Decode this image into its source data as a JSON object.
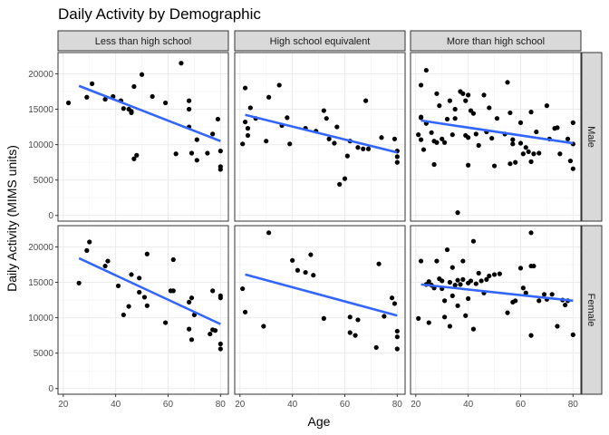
{
  "chart_data": {
    "type": "scatter",
    "title": "Daily Activity by Demographic",
    "xlabel": "Age",
    "ylabel": "Daily Activity (MIMS units)",
    "xlim": [
      18,
      83
    ],
    "ylim": [
      -800,
      23000
    ],
    "x_ticks": [
      20,
      40,
      60,
      80
    ],
    "y_ticks": [
      0,
      5000,
      10000,
      15000,
      20000
    ],
    "grid": true,
    "col_facets": [
      "Less than high school",
      "High school equivalent",
      "More than high school"
    ],
    "row_facets": [
      "Male",
      "Female"
    ],
    "colors": {
      "point": "#000000",
      "trend": "#3366ff",
      "strip": "#d9d9d9",
      "panel_border": "#333333",
      "grid": "#ebebeb"
    },
    "panels": [
      {
        "row": "Male",
        "col": "Less than high school",
        "trend": {
          "x": [
            26,
            80
          ],
          "y": [
            18300,
            10500
          ]
        },
        "points": [
          [
            22,
            15900
          ],
          [
            29,
            16700
          ],
          [
            31,
            18600
          ],
          [
            36,
            16400
          ],
          [
            39,
            16800
          ],
          [
            42,
            16200
          ],
          [
            43,
            15100
          ],
          [
            45,
            15000
          ],
          [
            46,
            14700
          ],
          [
            46,
            14500
          ],
          [
            47,
            18200
          ],
          [
            47,
            8000
          ],
          [
            48,
            8500
          ],
          [
            50,
            19900
          ],
          [
            54,
            16800
          ],
          [
            59,
            15900
          ],
          [
            63,
            8700
          ],
          [
            65,
            21500
          ],
          [
            68,
            16200
          ],
          [
            68,
            15000
          ],
          [
            68,
            12500
          ],
          [
            69,
            8800
          ],
          [
            71,
            10700
          ],
          [
            71,
            7800
          ],
          [
            75,
            8800
          ],
          [
            77,
            11500
          ],
          [
            79,
            13600
          ],
          [
            80,
            9100
          ],
          [
            80,
            6900
          ],
          [
            80,
            6500
          ]
        ]
      },
      {
        "row": "Male",
        "col": "High school equivalent",
        "trend": {
          "x": [
            22,
            80
          ],
          "y": [
            14200,
            8900
          ]
        },
        "points": [
          [
            21,
            10100
          ],
          [
            22,
            13200
          ],
          [
            22,
            18000
          ],
          [
            23,
            11300
          ],
          [
            23,
            12300
          ],
          [
            24,
            15200
          ],
          [
            26,
            13700
          ],
          [
            30,
            10500
          ],
          [
            31,
            16700
          ],
          [
            35,
            18400
          ],
          [
            36,
            12700
          ],
          [
            38,
            13800
          ],
          [
            39,
            10100
          ],
          [
            45,
            12300
          ],
          [
            49,
            11900
          ],
          [
            52,
            14800
          ],
          [
            53,
            13700
          ],
          [
            54,
            10800
          ],
          [
            56,
            10200
          ],
          [
            57,
            12500
          ],
          [
            58,
            4400
          ],
          [
            60,
            5200
          ],
          [
            61,
            8400
          ],
          [
            62,
            10500
          ],
          [
            65,
            9600
          ],
          [
            67,
            9400
          ],
          [
            68,
            16200
          ],
          [
            69,
            9400
          ],
          [
            74,
            11000
          ],
          [
            79,
            10800
          ],
          [
            80,
            9100
          ],
          [
            80,
            8300
          ],
          [
            80,
            7500
          ]
        ]
      },
      {
        "row": "Male",
        "col": "More than high school",
        "trend": {
          "x": [
            22,
            80
          ],
          "y": [
            13400,
            10200
          ]
        },
        "points": [
          [
            21,
            11400
          ],
          [
            22,
            18400
          ],
          [
            22,
            10700
          ],
          [
            22,
            13900
          ],
          [
            22,
            13800
          ],
          [
            23,
            9300
          ],
          [
            24,
            13000
          ],
          [
            24,
            20500
          ],
          [
            26,
            11700
          ],
          [
            27,
            10500
          ],
          [
            27,
            7200
          ],
          [
            28,
            17200
          ],
          [
            28,
            10300
          ],
          [
            29,
            15500
          ],
          [
            30,
            10800
          ],
          [
            31,
            10300
          ],
          [
            32,
            13600
          ],
          [
            33,
            16200
          ],
          [
            34,
            11400
          ],
          [
            35,
            13700
          ],
          [
            35,
            15000
          ],
          [
            36,
            400
          ],
          [
            37,
            17500
          ],
          [
            38,
            17200
          ],
          [
            39,
            16200
          ],
          [
            39,
            11300
          ],
          [
            40,
            7100
          ],
          [
            40,
            11000
          ],
          [
            40,
            17000
          ],
          [
            41,
            14800
          ],
          [
            42,
            14400
          ],
          [
            43,
            11500
          ],
          [
            44,
            9900
          ],
          [
            46,
            17000
          ],
          [
            47,
            11800
          ],
          [
            48,
            15200
          ],
          [
            49,
            10900
          ],
          [
            50,
            7000
          ],
          [
            51,
            13700
          ],
          [
            54,
            11500
          ],
          [
            55,
            18800
          ],
          [
            56,
            14500
          ],
          [
            56,
            7300
          ],
          [
            57,
            10100
          ],
          [
            57,
            10700
          ],
          [
            58,
            7500
          ],
          [
            60,
            13100
          ],
          [
            60,
            10200
          ],
          [
            61,
            8700
          ],
          [
            62,
            9600
          ],
          [
            63,
            9000
          ],
          [
            64,
            14600
          ],
          [
            64,
            7600
          ],
          [
            65,
            8700
          ],
          [
            66,
            11800
          ],
          [
            67,
            8800
          ],
          [
            70,
            15500
          ],
          [
            71,
            10800
          ],
          [
            73,
            12300
          ],
          [
            74,
            12400
          ],
          [
            75,
            8700
          ],
          [
            78,
            10800
          ],
          [
            79,
            7700
          ],
          [
            80,
            10100
          ],
          [
            80,
            13100
          ],
          [
            80,
            6600
          ]
        ]
      },
      {
        "row": "Female",
        "col": "Less than high school",
        "trend": {
          "x": [
            26,
            80
          ],
          "y": [
            18400,
            9100
          ]
        },
        "points": [
          [
            26,
            14900
          ],
          [
            29,
            19500
          ],
          [
            30,
            20700
          ],
          [
            36,
            17300
          ],
          [
            37,
            18000
          ],
          [
            41,
            14500
          ],
          [
            43,
            10400
          ],
          [
            45,
            11600
          ],
          [
            46,
            16100
          ],
          [
            49,
            15600
          ],
          [
            49,
            13600
          ],
          [
            51,
            12900
          ],
          [
            52,
            19000
          ],
          [
            52,
            11700
          ],
          [
            59,
            9300
          ],
          [
            61,
            13800
          ],
          [
            62,
            13800
          ],
          [
            62,
            18200
          ],
          [
            68,
            12200
          ],
          [
            68,
            8400
          ],
          [
            69,
            12800
          ],
          [
            69,
            6900
          ],
          [
            70,
            10400
          ],
          [
            76,
            7700
          ],
          [
            77,
            8300
          ],
          [
            77,
            13800
          ],
          [
            78,
            8200
          ],
          [
            80,
            13100
          ],
          [
            80,
            12800
          ],
          [
            80,
            6300
          ],
          [
            80,
            5600
          ]
        ]
      },
      {
        "row": "Female",
        "col": "High school equivalent",
        "trend": {
          "x": [
            22,
            80
          ],
          "y": [
            16100,
            10300
          ]
        },
        "points": [
          [
            21,
            14100
          ],
          [
            22,
            10800
          ],
          [
            29,
            8800
          ],
          [
            31,
            22000
          ],
          [
            40,
            18100
          ],
          [
            42,
            16700
          ],
          [
            45,
            16400
          ],
          [
            47,
            18900
          ],
          [
            48,
            16000
          ],
          [
            52,
            9900
          ],
          [
            62,
            10100
          ],
          [
            62,
            7900
          ],
          [
            64,
            7500
          ],
          [
            65,
            9700
          ],
          [
            72,
            5800
          ],
          [
            73,
            17600
          ],
          [
            75,
            10200
          ],
          [
            78,
            12800
          ],
          [
            79,
            12000
          ],
          [
            80,
            8100
          ],
          [
            80,
            7300
          ],
          [
            80,
            5600
          ]
        ]
      },
      {
        "row": "Female",
        "col": "More than high school",
        "trend": {
          "x": [
            22,
            80
          ],
          "y": [
            14700,
            12400
          ]
        },
        "points": [
          [
            21,
            9900
          ],
          [
            22,
            18000
          ],
          [
            24,
            14700
          ],
          [
            25,
            15100
          ],
          [
            25,
            9300
          ],
          [
            26,
            14600
          ],
          [
            27,
            14200
          ],
          [
            28,
            18000
          ],
          [
            29,
            15500
          ],
          [
            30,
            15200
          ],
          [
            30,
            14100
          ],
          [
            31,
            12400
          ],
          [
            31,
            10100
          ],
          [
            32,
            19600
          ],
          [
            33,
            8800
          ],
          [
            33,
            15000
          ],
          [
            34,
            13100
          ],
          [
            34,
            17100
          ],
          [
            35,
            14600
          ],
          [
            36,
            11700
          ],
          [
            36,
            15300
          ],
          [
            37,
            14700
          ],
          [
            38,
            18000
          ],
          [
            38,
            15400
          ],
          [
            39,
            10300
          ],
          [
            40,
            14900
          ],
          [
            40,
            12700
          ],
          [
            41,
            15200
          ],
          [
            42,
            20800
          ],
          [
            42,
            8400
          ],
          [
            43,
            14800
          ],
          [
            44,
            16300
          ],
          [
            45,
            15200
          ],
          [
            46,
            13500
          ],
          [
            47,
            15400
          ],
          [
            48,
            15900
          ],
          [
            50,
            16100
          ],
          [
            52,
            16200
          ],
          [
            55,
            10700
          ],
          [
            57,
            12200
          ],
          [
            58,
            12400
          ],
          [
            60,
            17000
          ],
          [
            61,
            14200
          ],
          [
            62,
            13500
          ],
          [
            64,
            17300
          ],
          [
            64,
            22000
          ],
          [
            64,
            7500
          ],
          [
            65,
            17300
          ],
          [
            67,
            12400
          ],
          [
            69,
            13300
          ],
          [
            70,
            12600
          ],
          [
            72,
            13300
          ],
          [
            74,
            8800
          ],
          [
            76,
            12500
          ],
          [
            77,
            11800
          ],
          [
            78,
            12400
          ],
          [
            80,
            7600
          ]
        ]
      }
    ]
  }
}
